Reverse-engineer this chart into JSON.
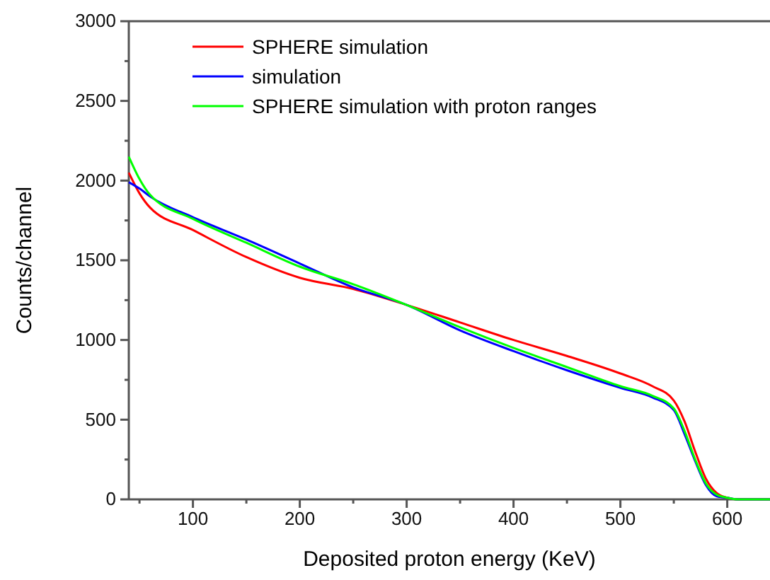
{
  "chart_data": {
    "type": "line",
    "xlabel": "Deposited proton energy (KeV)",
    "ylabel": "Counts/channel",
    "xlim": [
      40,
      640
    ],
    "ylim": [
      0,
      3000
    ],
    "xticks": [
      {
        "value": 50,
        "label": null
      },
      100,
      {
        "value": 150,
        "label": null
      },
      200,
      {
        "value": 250,
        "label": null
      },
      300,
      {
        "value": 350,
        "label": null
      },
      400,
      {
        "value": 450,
        "label": null
      },
      500,
      {
        "value": 550,
        "label": null
      },
      600
    ],
    "yticks": [
      0,
      {
        "value": 250,
        "label": null
      },
      500,
      {
        "value": 750,
        "label": null
      },
      1000,
      {
        "value": 1250,
        "label": null
      },
      1500,
      {
        "value": 1750,
        "label": null
      },
      2000,
      {
        "value": 2250,
        "label": null
      },
      2500,
      {
        "value": 2750,
        "label": null
      },
      3000
    ],
    "grid": false,
    "legend": "top left",
    "marker": "none",
    "line_style": "solid",
    "x": [
      40,
      50,
      60,
      100,
      150,
      200,
      250,
      300,
      350,
      400,
      450,
      500,
      530,
      550,
      560,
      570,
      580,
      590,
      600,
      610,
      640
    ],
    "series": [
      {
        "name": "SPHERE simulation",
        "color": "#ff0000",
        "values": [
          2050,
          1920,
          1830,
          1690,
          1520,
          1390,
          1320,
          1220,
          1110,
          1000,
          900,
          790,
          710,
          620,
          490,
          300,
          130,
          40,
          10,
          0,
          0
        ]
      },
      {
        "name": "simulation",
        "color": "#0000ff",
        "values": [
          1990,
          1950,
          1900,
          1770,
          1630,
          1480,
          1330,
          1220,
          1060,
          930,
          810,
          700,
          640,
          560,
          410,
          240,
          90,
          20,
          10,
          0,
          0
        ]
      },
      {
        "name": "SPHERE simulation with proton ranges",
        "color": "#00ff00",
        "values": [
          2150,
          2010,
          1910,
          1760,
          1610,
          1460,
          1350,
          1220,
          1080,
          950,
          830,
          710,
          650,
          570,
          430,
          250,
          100,
          30,
          10,
          0,
          0
        ]
      }
    ]
  }
}
